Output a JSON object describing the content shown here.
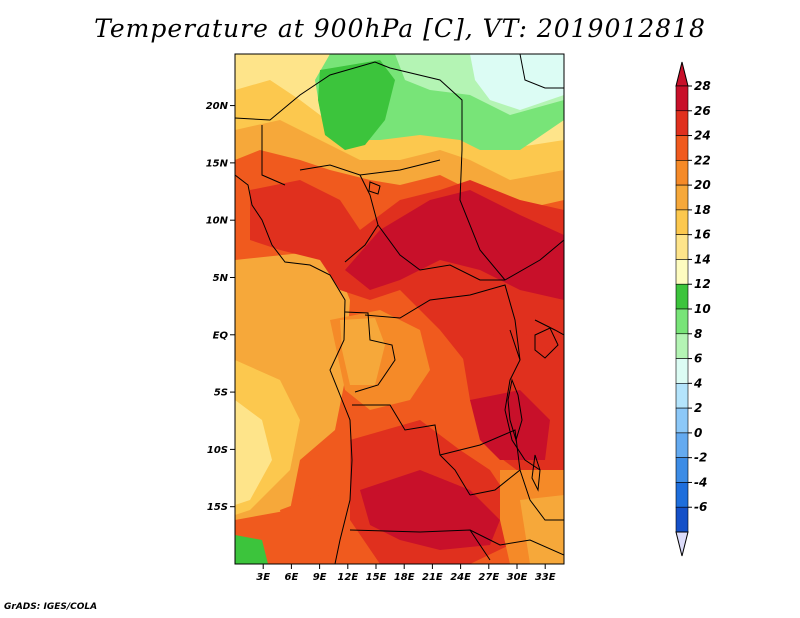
{
  "title": "Temperature at 900hPa [C], VT: 2019012818",
  "credit": "GrADS: IGES/COLA",
  "map": {
    "lon_range": [
      0,
      35
    ],
    "lat_range": [
      -20,
      24.5
    ],
    "lat_ticks": [
      {
        "value": 20,
        "label": "20N"
      },
      {
        "value": 15,
        "label": "15N"
      },
      {
        "value": 10,
        "label": "10N"
      },
      {
        "value": 5,
        "label": "5N"
      },
      {
        "value": 0,
        "label": "EQ"
      },
      {
        "value": -5,
        "label": "5S"
      },
      {
        "value": -10,
        "label": "10S"
      },
      {
        "value": -15,
        "label": "15S"
      }
    ],
    "lon_ticks": [
      {
        "value": 3,
        "label": "3E"
      },
      {
        "value": 6,
        "label": "6E"
      },
      {
        "value": 9,
        "label": "9E"
      },
      {
        "value": 12,
        "label": "12E"
      },
      {
        "value": 15,
        "label": "15E"
      },
      {
        "value": 18,
        "label": "18E"
      },
      {
        "value": 21,
        "label": "21E"
      },
      {
        "value": 24,
        "label": "24E"
      },
      {
        "value": 27,
        "label": "27E"
      },
      {
        "value": 30,
        "label": "30E"
      },
      {
        "value": 33,
        "label": "33E"
      }
    ]
  },
  "colorbar": {
    "labels": [
      "28",
      "26",
      "24",
      "22",
      "20",
      "18",
      "16",
      "14",
      "12",
      "10",
      "8",
      "6",
      "4",
      "2",
      "0",
      "-2",
      "-4",
      "-6"
    ],
    "colors": [
      "#c8102a",
      "#e0301e",
      "#f05a1e",
      "#f58a28",
      "#f6a83a",
      "#fcc84e",
      "#fee48a",
      "#fefcc0",
      "#3cc43c",
      "#78e478",
      "#b4f4b4",
      "#dcfcf4",
      "#b4e4fc",
      "#8cc8f8",
      "#64aaf0",
      "#3c8ce6",
      "#1e6edc",
      "#1450c8",
      "#0a28a0"
    ],
    "top_color": "#c8102a",
    "bottom_color": "#dcdcfa"
  }
}
